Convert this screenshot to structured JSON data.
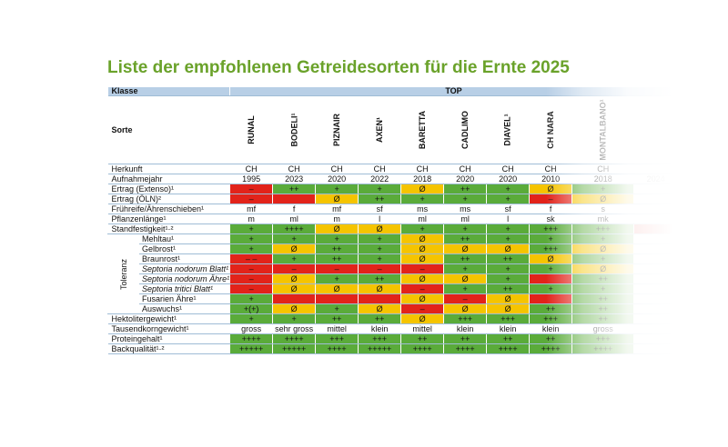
{
  "title": "Liste der empfohlenen Getreidesorten für die Ernte 2025",
  "header": {
    "klasse_label": "Klasse",
    "klasse_value": "TOP"
  },
  "sorte_label": "Sorte",
  "toleranz_label": "Toleranz",
  "varieties": [
    "RUNAL",
    "BODELI¹",
    "PIZNAIR",
    "AXEN¹",
    "BARETTA",
    "CADLIMO",
    "DIAVEL¹",
    "CH NARA",
    "MONTALBANO¹",
    ""
  ],
  "rows": [
    {
      "label": "Herkunft",
      "cells": [
        [
          "CH",
          "white"
        ],
        [
          "CH",
          "white"
        ],
        [
          "CH",
          "white"
        ],
        [
          "CH",
          "white"
        ],
        [
          "CH",
          "white"
        ],
        [
          "CH",
          "white"
        ],
        [
          "CH",
          "white"
        ],
        [
          "CH",
          "white"
        ],
        [
          "CH",
          "white"
        ],
        [
          "",
          "white"
        ]
      ]
    },
    {
      "label": "Aufnahmejahr",
      "cells": [
        [
          "1995",
          "white"
        ],
        [
          "2023",
          "white"
        ],
        [
          "2020",
          "white"
        ],
        [
          "2022",
          "white"
        ],
        [
          "2018",
          "white"
        ],
        [
          "2020",
          "white"
        ],
        [
          "2020",
          "white"
        ],
        [
          "2010",
          "white"
        ],
        [
          "2018",
          "white"
        ],
        [
          "2024",
          "white"
        ]
      ]
    },
    {
      "label": "Ertrag (Extenso)¹",
      "cells": [
        [
          "–",
          "red"
        ],
        [
          "++",
          "green"
        ],
        [
          "+",
          "green"
        ],
        [
          "+",
          "green"
        ],
        [
          "Ø",
          "yellow"
        ],
        [
          "++",
          "green"
        ],
        [
          "+",
          "green"
        ],
        [
          "Ø",
          "yellow"
        ],
        [
          "+",
          "green"
        ],
        [
          "",
          "white"
        ]
      ]
    },
    {
      "label": "Ertrag (ÖLN)²",
      "cells": [
        [
          "–",
          "red"
        ],
        [
          "",
          "red"
        ],
        [
          "Ø",
          "yellow"
        ],
        [
          "++",
          "green"
        ],
        [
          "+",
          "green"
        ],
        [
          "+",
          "green"
        ],
        [
          "+",
          "green"
        ],
        [
          "–",
          "red"
        ],
        [
          "Ø",
          "yellow"
        ],
        [
          "",
          "white"
        ]
      ]
    },
    {
      "label": "Frühreife/Ährenschieben¹",
      "cells": [
        [
          "mf",
          "white"
        ],
        [
          "f",
          "white"
        ],
        [
          "mf",
          "white"
        ],
        [
          "sf",
          "white"
        ],
        [
          "ms",
          "white"
        ],
        [
          "ms",
          "white"
        ],
        [
          "sf",
          "white"
        ],
        [
          "f",
          "white"
        ],
        [
          "s",
          "white"
        ],
        [
          "",
          "white"
        ]
      ]
    },
    {
      "label": "Pflanzenlänge¹",
      "cells": [
        [
          "m",
          "white"
        ],
        [
          "ml",
          "white"
        ],
        [
          "m",
          "white"
        ],
        [
          "l",
          "white"
        ],
        [
          "ml",
          "white"
        ],
        [
          "ml",
          "white"
        ],
        [
          "l",
          "white"
        ],
        [
          "sk",
          "white"
        ],
        [
          "mk",
          "white"
        ],
        [
          "",
          "white"
        ]
      ]
    },
    {
      "label": "Standfestigkeit¹·²",
      "cells": [
        [
          "+",
          "green"
        ],
        [
          "++++",
          "green"
        ],
        [
          "Ø",
          "yellow"
        ],
        [
          "Ø",
          "yellow"
        ],
        [
          "+",
          "green"
        ],
        [
          "+",
          "green"
        ],
        [
          "+",
          "green"
        ],
        [
          "+++",
          "green"
        ],
        [
          "+++",
          "green"
        ],
        [
          "",
          "red"
        ]
      ]
    },
    {
      "label": "Mehltau¹",
      "tol": true,
      "cells": [
        [
          "+",
          "green"
        ],
        [
          "+",
          "green"
        ],
        [
          "+",
          "green"
        ],
        [
          "+",
          "green"
        ],
        [
          "Ø",
          "yellow"
        ],
        [
          "++",
          "green"
        ],
        [
          "+",
          "green"
        ],
        [
          "+",
          "green"
        ],
        [
          "+",
          "green"
        ],
        [
          "",
          "white"
        ]
      ]
    },
    {
      "label": "Gelbrost¹",
      "tol": true,
      "cells": [
        [
          "+",
          "green"
        ],
        [
          "Ø",
          "yellow"
        ],
        [
          "++",
          "green"
        ],
        [
          "+",
          "green"
        ],
        [
          "Ø",
          "yellow"
        ],
        [
          "Ø",
          "yellow"
        ],
        [
          "Ø",
          "yellow"
        ],
        [
          "+++",
          "green"
        ],
        [
          "Ø",
          "yellow"
        ],
        [
          "",
          "white"
        ]
      ]
    },
    {
      "label": "Braunrost¹",
      "tol": true,
      "cells": [
        [
          "– –",
          "red"
        ],
        [
          "+",
          "green"
        ],
        [
          "++",
          "green"
        ],
        [
          "+",
          "green"
        ],
        [
          "Ø",
          "yellow"
        ],
        [
          "++",
          "green"
        ],
        [
          "++",
          "green"
        ],
        [
          "Ø",
          "yellow"
        ],
        [
          "+",
          "green"
        ],
        [
          "",
          "white"
        ]
      ]
    },
    {
      "label": "Septoria nodorum Blatt¹",
      "tol": true,
      "it": true,
      "cells": [
        [
          "–",
          "red"
        ],
        [
          "–",
          "red"
        ],
        [
          "–",
          "red"
        ],
        [
          "–",
          "red"
        ],
        [
          "–",
          "red"
        ],
        [
          "+",
          "green"
        ],
        [
          "+",
          "green"
        ],
        [
          "+",
          "green"
        ],
        [
          "Ø",
          "yellow"
        ],
        [
          "",
          "white"
        ]
      ]
    },
    {
      "label": "Septoria nodorum Ähre¹",
      "tol": true,
      "it": true,
      "cells": [
        [
          "–",
          "red"
        ],
        [
          "Ø",
          "yellow"
        ],
        [
          "+",
          "green"
        ],
        [
          "++",
          "green"
        ],
        [
          "Ø",
          "yellow"
        ],
        [
          "Ø",
          "yellow"
        ],
        [
          "+",
          "green"
        ],
        [
          "",
          "red"
        ],
        [
          "++",
          "green"
        ],
        [
          "",
          "white"
        ]
      ]
    },
    {
      "label": "Septoria tritici Blatt¹",
      "tol": true,
      "it": true,
      "cells": [
        [
          "–",
          "red"
        ],
        [
          "Ø",
          "yellow"
        ],
        [
          "Ø",
          "yellow"
        ],
        [
          "Ø",
          "yellow"
        ],
        [
          "–",
          "red"
        ],
        [
          "+",
          "green"
        ],
        [
          "++",
          "green"
        ],
        [
          "+",
          "green"
        ],
        [
          "+",
          "green"
        ],
        [
          "",
          "white"
        ]
      ]
    },
    {
      "label": "Fusarien Ähre¹",
      "tol": true,
      "cells": [
        [
          "+",
          "green"
        ],
        [
          "",
          "red"
        ],
        [
          "",
          "red"
        ],
        [
          "",
          "red"
        ],
        [
          "Ø",
          "yellow"
        ],
        [
          "–",
          "red"
        ],
        [
          "Ø",
          "yellow"
        ],
        [
          "",
          "red"
        ],
        [
          "++",
          "green"
        ],
        [
          "",
          "white"
        ]
      ]
    },
    {
      "label": "Auswuchs¹",
      "tol": true,
      "cells": [
        [
          "+(+)",
          "green"
        ],
        [
          "Ø",
          "yellow"
        ],
        [
          "+",
          "green"
        ],
        [
          "Ø",
          "yellow"
        ],
        [
          "–",
          "red"
        ],
        [
          "Ø",
          "yellow"
        ],
        [
          "Ø",
          "yellow"
        ],
        [
          "++",
          "green"
        ],
        [
          "++",
          "green"
        ],
        [
          "",
          "white"
        ]
      ]
    },
    {
      "label": "Hektolitergewicht¹",
      "cells": [
        [
          "+",
          "green"
        ],
        [
          "+",
          "green"
        ],
        [
          "++",
          "green"
        ],
        [
          "++",
          "green"
        ],
        [
          "Ø",
          "yellow"
        ],
        [
          "+++",
          "green"
        ],
        [
          "+++",
          "green"
        ],
        [
          "+++",
          "green"
        ],
        [
          "++",
          "green"
        ],
        [
          "",
          "white"
        ]
      ]
    },
    {
      "label": "Tausendkorngewicht¹",
      "cells": [
        [
          "gross",
          "white"
        ],
        [
          "sehr gross",
          "white"
        ],
        [
          "mittel",
          "white"
        ],
        [
          "klein",
          "white"
        ],
        [
          "mittel",
          "white"
        ],
        [
          "klein",
          "white"
        ],
        [
          "klein",
          "white"
        ],
        [
          "klein",
          "white"
        ],
        [
          "gross",
          "white"
        ],
        [
          "",
          "white"
        ]
      ]
    },
    {
      "label": "Proteingehalt¹",
      "cells": [
        [
          "++++",
          "green"
        ],
        [
          "++++",
          "green"
        ],
        [
          "+++",
          "green"
        ],
        [
          "+++",
          "green"
        ],
        [
          "++",
          "green"
        ],
        [
          "++",
          "green"
        ],
        [
          "++",
          "green"
        ],
        [
          "++",
          "green"
        ],
        [
          "+++",
          "green"
        ],
        [
          "",
          "white"
        ]
      ]
    },
    {
      "label": "Backqualität¹·²",
      "cells": [
        [
          "+++++",
          "green"
        ],
        [
          "+++++",
          "green"
        ],
        [
          "++++",
          "green"
        ],
        [
          "+++++",
          "green"
        ],
        [
          "++++",
          "green"
        ],
        [
          "++++",
          "green"
        ],
        [
          "++++",
          "green"
        ],
        [
          "++++",
          "green"
        ],
        [
          "++++",
          "green"
        ],
        [
          "",
          "white"
        ]
      ]
    }
  ]
}
